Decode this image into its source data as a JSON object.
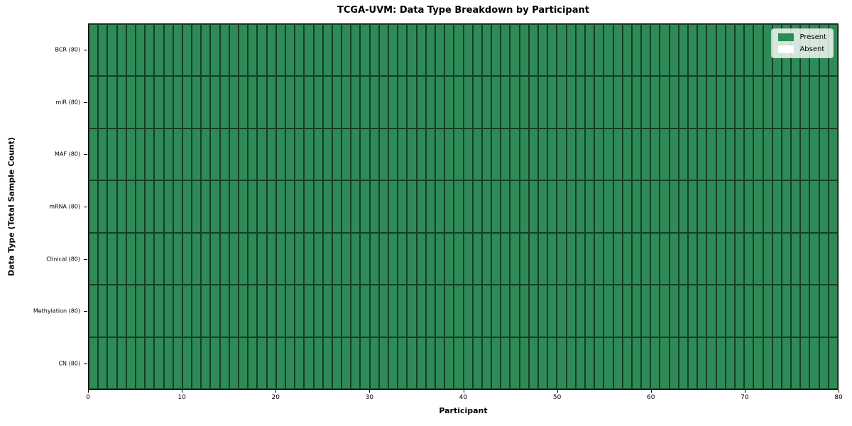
{
  "chart_data": {
    "type": "heatmap",
    "title": "TCGA-UVM: Data Type Breakdown by Participant",
    "xlabel": "Participant",
    "ylabel": "Data Type (Total Sample Count)",
    "xlim": [
      0,
      80
    ],
    "n_participants": 80,
    "x_ticks": [
      0,
      10,
      20,
      30,
      40,
      50,
      60,
      70,
      80
    ],
    "rows": [
      {
        "label": "BCR (80)",
        "present_count": 80,
        "total": 80
      },
      {
        "label": "miR (80)",
        "present_count": 80,
        "total": 80
      },
      {
        "label": "MAF (80)",
        "present_count": 80,
        "total": 80
      },
      {
        "label": "mRNA (80)",
        "present_count": 80,
        "total": 80
      },
      {
        "label": "Clinical (80)",
        "present_count": 80,
        "total": 80
      },
      {
        "label": "Methylation (80)",
        "present_count": 80,
        "total": 80
      },
      {
        "label": "CN (80)",
        "present_count": 80,
        "total": 80
      }
    ],
    "legend": [
      {
        "label": "Present",
        "color": "#2e8b57"
      },
      {
        "label": "Absent",
        "color": "#ffffff"
      }
    ],
    "legend_position": "upper right",
    "colors": {
      "present": "#2e8b57",
      "absent": "#ffffff",
      "cell_edge": "rgba(0,0,0,0.55)",
      "spine": "#000000"
    },
    "grid": "cell-borders"
  }
}
